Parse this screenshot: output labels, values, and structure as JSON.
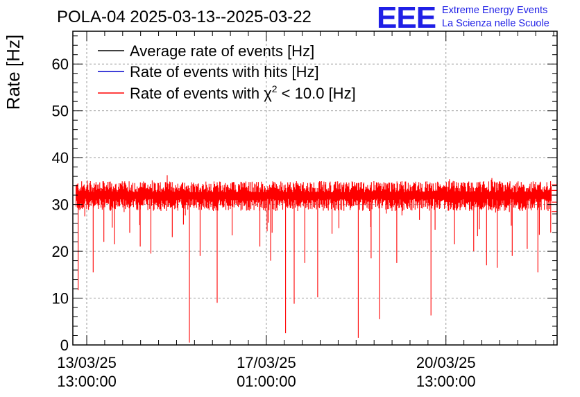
{
  "colors": {
    "average": "#000000",
    "hits": "#0000cc",
    "chi2": "#ff0000",
    "logo": "#1f1fe6",
    "grid": "#9a9a9a"
  },
  "header": {
    "title": "POLA-04 2025-03-13--2025-03-22",
    "logo_text": "EEE",
    "logo_line1": "Extreme Energy Events",
    "logo_line2": "La Scienza nelle Scuole"
  },
  "chart_data": {
    "type": "line",
    "title": "POLA-04 2025-03-13--2025-03-22",
    "xlabel": "",
    "ylabel": "Rate [Hz]",
    "ylim": [
      0,
      67
    ],
    "yticks": [
      0,
      10,
      20,
      30,
      40,
      50,
      60
    ],
    "x_start": "2025-03-13 06:30:00",
    "x_end": "2025-03-22 17:00:00",
    "xticks": [
      {
        "date": "13/03/25",
        "time": "13:00:00",
        "at": "2025-03-13 13:00:00"
      },
      {
        "date": "17/03/25",
        "time": "01:00:00",
        "at": "2025-03-17 01:00:00"
      },
      {
        "date": "20/03/25",
        "time": "13:00:00",
        "at": "2025-03-20 13:00:00"
      }
    ],
    "grid": true,
    "legend_position": "top-left",
    "series": [
      {
        "name": "Average rate of events [Hz]",
        "color": "#000000",
        "baseline": 32.0
      },
      {
        "name": "Rate of events with hits [Hz]",
        "color": "#0000cc",
        "baseline": 32.0
      },
      {
        "name": "Rate of events with χ2 < 10.0 [Hz]",
        "color": "#ff0000",
        "baseline": 32.0
      }
    ],
    "chi2_dips": [
      {
        "at": "2025-03-13 09:00:00",
        "value": 11.7
      },
      {
        "at": "2025-03-13 16:00:00",
        "value": 15.5
      },
      {
        "at": "2025-03-13 21:00:00",
        "value": 22.0
      },
      {
        "at": "2025-03-14 02:00:00",
        "value": 21.5
      },
      {
        "at": "2025-03-14 14:00:00",
        "value": 21.0
      },
      {
        "at": "2025-03-14 19:00:00",
        "value": 19.5
      },
      {
        "at": "2025-03-15 05:00:00",
        "value": 23.0
      },
      {
        "at": "2025-03-15 13:00:00",
        "value": 0.5
      },
      {
        "at": "2025-03-15 18:00:00",
        "value": 19.0
      },
      {
        "at": "2025-03-16 02:00:00",
        "value": 9.0
      },
      {
        "at": "2025-03-16 22:00:00",
        "value": 21.0
      },
      {
        "at": "2025-03-17 03:00:00",
        "value": 18.0
      },
      {
        "at": "2025-03-17 10:00:00",
        "value": 2.5
      },
      {
        "at": "2025-03-17 14:00:00",
        "value": 8.8
      },
      {
        "at": "2025-03-17 19:00:00",
        "value": 17.5
      },
      {
        "at": "2025-03-18 01:00:00",
        "value": 10.2
      },
      {
        "at": "2025-03-18 20:00:00",
        "value": 1.5
      },
      {
        "at": "2025-03-19 02:00:00",
        "value": 18.5
      },
      {
        "at": "2025-03-19 06:00:00",
        "value": 5.5
      },
      {
        "at": "2025-03-19 14:00:00",
        "value": 17.5
      },
      {
        "at": "2025-03-20 06:00:00",
        "value": 6.3
      },
      {
        "at": "2025-03-20 17:00:00",
        "value": 21.5
      },
      {
        "at": "2025-03-21 02:00:00",
        "value": 20.0
      },
      {
        "at": "2025-03-21 08:00:00",
        "value": 17.0
      },
      {
        "at": "2025-03-21 13:00:00",
        "value": 16.5
      },
      {
        "at": "2025-03-21 20:00:00",
        "value": 19.0
      },
      {
        "at": "2025-03-22 03:00:00",
        "value": 20.5
      },
      {
        "at": "2025-03-22 08:00:00",
        "value": 15.5
      },
      {
        "at": "2025-03-22 14:00:00",
        "value": 24.0
      }
    ],
    "end_levels": [
      34.2,
      33.0,
      32.0,
      30.5,
      28.5
    ]
  }
}
